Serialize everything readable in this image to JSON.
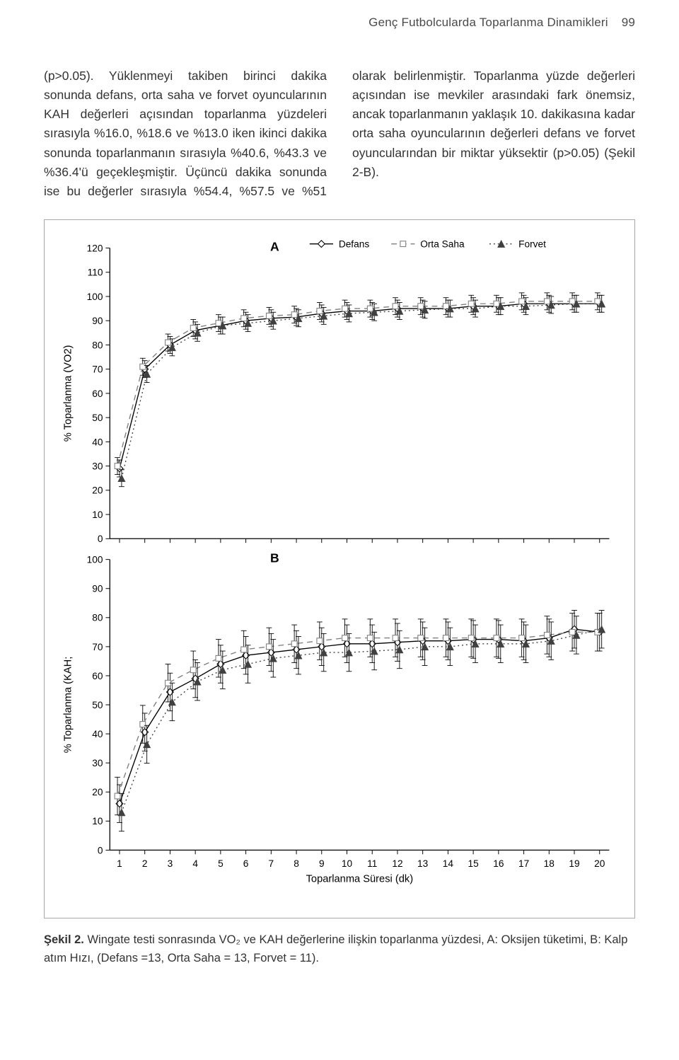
{
  "header": {
    "running_title": "Genç Futbolcularda Toparlanma Dinamikleri",
    "page_number": "99"
  },
  "paragraph": "(p>0.05). Yüklenmeyi takiben birinci dakika sonunda defans, orta saha ve forvet oyuncularının KAH değerleri açısından toparlanma yüzdeleri sırasıyla %16.0, %18.6 ve %13.0 iken ikinci dakika sonunda toparlanmanın sırasıyla %40.6, %43.3 ve %36.4'ü geçekleşmiştir. Üçüncü dakika sonunda ise bu değerler sırasıyla %54.4, %57.5 ve %51 olarak belirlenmiştir. Toparlanma yüzde değerleri açısından ise mevkiler arasındaki fark önemsiz, ancak toparlanmanın yaklaşık 10. dakikasına kadar orta saha oyuncularının değerleri defans ve forvet oyuncularından bir miktar yüksektir (p>0.05) (Şekil 2-B).",
  "caption": {
    "label": "Şekil 2.",
    "text": " Wingate testi sonrasında VO₂ ve KAH değerlerine ilişkin toparlanma yüzdesi, A: Oksijen tüketimi, B: Kalp atım Hızı, (Defans =13, Orta Saha = 13, Forvet = 11)."
  },
  "figure": {
    "legend": [
      {
        "name": "Defans",
        "marker": "diamond-open",
        "line": "solid",
        "color": "#000000"
      },
      {
        "name": "Orta Saha",
        "marker": "square-open",
        "line": "dash",
        "color": "#808080"
      },
      {
        "name": "Forvet",
        "marker": "triangle-filled",
        "line": "dot",
        "color": "#404040"
      }
    ],
    "shared_x": {
      "label": "Toparlanma Süresi (dk)",
      "ticks": [
        1,
        2,
        3,
        4,
        5,
        6,
        7,
        8,
        9,
        10,
        11,
        12,
        13,
        14,
        15,
        16,
        17,
        18,
        19,
        20
      ]
    },
    "panel_A": {
      "id": "A",
      "ylabel": "% Toparlanma (VO2)",
      "ylim": [
        0,
        120
      ],
      "ytick_step": 10,
      "series": {
        "defans": [
          29,
          70,
          80,
          86,
          88,
          90,
          91,
          91.5,
          93,
          94,
          94,
          95,
          95,
          95,
          96,
          96,
          97,
          97,
          97,
          97
        ],
        "orta_saha": [
          30,
          71,
          81,
          87,
          89,
          91,
          92,
          92.5,
          94,
          95,
          95,
          96,
          96,
          96,
          97,
          97,
          98,
          98,
          98,
          98
        ],
        "forvet": [
          25,
          68,
          79,
          85,
          88,
          89,
          90,
          91,
          92,
          93,
          93.5,
          94,
          94.5,
          95,
          95,
          96,
          96,
          96.5,
          97,
          97
        ]
      },
      "error": 3.5
    },
    "panel_B": {
      "id": "B",
      "ylabel": "% Toparlanma (KAH;",
      "ylim": [
        0,
        100
      ],
      "ytick_step": 10,
      "series": {
        "defans": [
          16,
          40.6,
          54.4,
          59,
          64,
          67,
          68,
          69,
          70,
          71,
          71,
          71.5,
          72,
          72,
          72.5,
          72.5,
          72,
          73,
          76,
          75
        ],
        "orta_saha": [
          18.6,
          43.3,
          57.5,
          62,
          66,
          69,
          70,
          71,
          72,
          73,
          73,
          73,
          73,
          73,
          73,
          73,
          73,
          74,
          75,
          75
        ],
        "forvet": [
          13,
          36.4,
          51,
          58,
          62,
          64,
          66,
          67,
          68,
          68,
          68.5,
          69,
          70,
          70,
          71,
          71,
          71,
          72,
          74,
          76
        ]
      },
      "error": 6.5
    },
    "style": {
      "axis_color": "#000000",
      "text_color": "#000000",
      "font_size": 14,
      "line_width": 1.4,
      "marker_size": 5,
      "err_cap": 4
    }
  }
}
